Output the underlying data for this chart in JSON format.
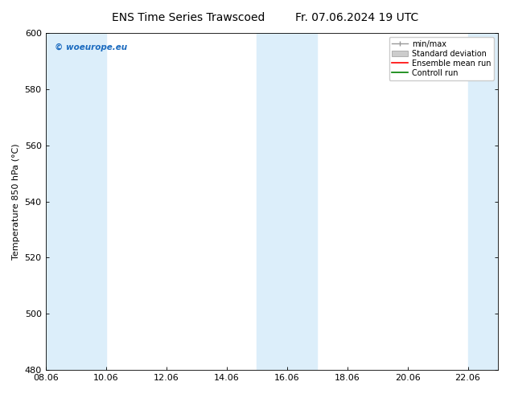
{
  "title_left": "ENS Time Series Trawscoed",
  "title_right": "Fr. 07.06.2024 19 UTC",
  "ylabel": "Temperature 850 hPa (°C)",
  "ylim": [
    480,
    600
  ],
  "yticks": [
    480,
    500,
    520,
    540,
    560,
    580,
    600
  ],
  "xlim": [
    0,
    15
  ],
  "xtick_labels": [
    "08.06",
    "10.06",
    "12.06",
    "14.06",
    "16.06",
    "18.06",
    "20.06",
    "22.06"
  ],
  "xtick_positions": [
    0,
    2,
    4,
    6,
    8,
    10,
    12,
    14
  ],
  "shaded_bands": [
    {
      "x_start": 0,
      "x_end": 1,
      "color": "#dceefa"
    },
    {
      "x_start": 1,
      "x_end": 2,
      "color": "#dceefa"
    },
    {
      "x_start": 7,
      "x_end": 9,
      "color": "#dceefa"
    },
    {
      "x_start": 14,
      "x_end": 15,
      "color": "#dceefa"
    }
  ],
  "legend_items": [
    {
      "label": "min/max",
      "color": "#aaaaaa",
      "type": "errorbar"
    },
    {
      "label": "Standard deviation",
      "color": "#cccccc",
      "type": "box"
    },
    {
      "label": "Ensemble mean run",
      "color": "red",
      "type": "line"
    },
    {
      "label": "Controll run",
      "color": "green",
      "type": "line"
    }
  ],
  "watermark": "© woeurope.eu",
  "watermark_color": "#1a6abf",
  "background_color": "#ffffff",
  "plot_bg_color": "#ffffff",
  "title_fontsize": 10,
  "tick_fontsize": 8,
  "ylabel_fontsize": 8,
  "legend_fontsize": 7
}
